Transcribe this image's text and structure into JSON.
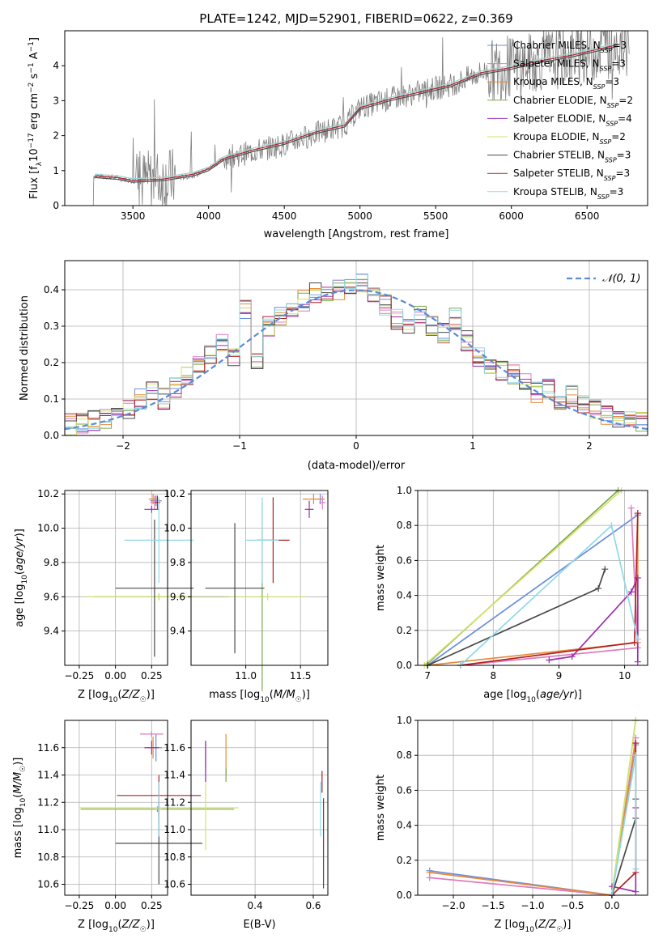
{
  "figure": {
    "title": "PLATE=1242, MJD=52901, FIBERID=0622, z=0.369"
  },
  "colors": {
    "Chabrier MILES": "#6b8ddc",
    "Salpeter MILES": "#e07bbf",
    "Kroupa MILES": "#e68a3a",
    "Chabrier ELODIE": "#7aa94a",
    "Salpeter ELODIE": "#9b2fae",
    "Kroupa ELODIE": "#d6e26b",
    "Chabrier STELIB": "#4a4a4a",
    "Salpeter STELIB": "#b22222",
    "Kroupa STELIB": "#8fd8e8",
    "data": "#808080"
  },
  "legend_main": [
    {
      "id": "Chabrier MILES",
      "base": "Chabrier MILES, N",
      "sub": "SSP",
      "tail": "=3"
    },
    {
      "id": "Salpeter MILES",
      "base": "Salpeter MILES, N",
      "sub": "SSP",
      "tail": "=3"
    },
    {
      "id": "Kroupa MILES",
      "base": "Kroupa MILES, N",
      "sub": "SSP",
      "tail": "=3"
    },
    {
      "id": "Chabrier ELODIE",
      "base": "Chabrier ELODIE, N",
      "sub": "SSP",
      "tail": "=2"
    },
    {
      "id": "Salpeter ELODIE",
      "base": "Salpeter ELODIE, N",
      "sub": "SSP",
      "tail": "=4"
    },
    {
      "id": "Kroupa ELODIE",
      "base": "Kroupa ELODIE, N",
      "sub": "SSP",
      "tail": "=2"
    },
    {
      "id": "Chabrier STELIB",
      "base": "Chabrier STELIB, N",
      "sub": "SSP",
      "tail": "=3"
    },
    {
      "id": "Salpeter STELIB",
      "base": "Salpeter STELIB, N",
      "sub": "SSP",
      "tail": "=3"
    },
    {
      "id": "Kroupa STELIB",
      "base": "Kroupa STELIB, N",
      "sub": "SSP",
      "tail": "=3"
    }
  ],
  "chart_data": [
    {
      "id": "spectrum",
      "type": "line",
      "xlabel": "wavelength [Angstrom, rest frame]",
      "ylabel": "Flux [f_λ 10^-17 erg cm^-2 s^-1 A^-1]",
      "xlim": [
        3050,
        6900
      ],
      "ylim": [
        0,
        5
      ],
      "xticks": [
        3500,
        4000,
        4500,
        5000,
        5500,
        6000,
        6500
      ],
      "yticks": [
        0,
        1,
        2,
        3,
        4
      ],
      "data_series": {
        "name": "data",
        "x": [
          3250,
          3400,
          3500,
          3700,
          3900,
          4000,
          4100,
          4300,
          4500,
          4700,
          4900,
          5000,
          5200,
          5400,
          5600,
          5800,
          6000,
          6200,
          6400,
          6700
        ],
        "y": [
          0.85,
          0.8,
          0.7,
          0.75,
          0.85,
          1.05,
          1.35,
          1.55,
          1.75,
          2.05,
          2.3,
          2.8,
          3.05,
          3.25,
          3.45,
          3.8,
          3.95,
          4.15,
          4.3,
          4.55
        ]
      },
      "model_x": [
        3250,
        3400,
        3500,
        3700,
        3900,
        4000,
        4100,
        4300,
        4500,
        4700,
        4900,
        5000,
        5200,
        5400,
        5600,
        5800,
        6000,
        6200,
        6400,
        6700
      ],
      "model_y": [
        0.85,
        0.8,
        0.72,
        0.76,
        0.9,
        1.05,
        1.35,
        1.6,
        1.8,
        2.1,
        2.3,
        2.8,
        3.05,
        3.25,
        3.45,
        3.8,
        3.95,
        4.15,
        4.3,
        4.6
      ],
      "noise_region": [
        [
          3520,
          3780
        ],
        [
          5850,
          6800
        ]
      ]
    },
    {
      "id": "residuals",
      "type": "area",
      "xlabel": "(data-model)/error",
      "ylabel": "Normed distribution",
      "xlim": [
        -2.5,
        2.5
      ],
      "ylim": [
        0,
        0.48
      ],
      "xticks": [
        -2,
        -1,
        0,
        1,
        2
      ],
      "yticks": [
        0.0,
        0.1,
        0.2,
        0.3,
        0.4
      ],
      "bins": [
        -2.5,
        -2.4,
        -2.3,
        -2.2,
        -2.1,
        -2.0,
        -1.9,
        -1.8,
        -1.7,
        -1.6,
        -1.5,
        -1.4,
        -1.3,
        -1.2,
        -1.1,
        -1.0,
        -0.9,
        -0.8,
        -0.7,
        -0.6,
        -0.5,
        -0.4,
        -0.3,
        -0.2,
        -0.1,
        0.0,
        0.1,
        0.2,
        0.3,
        0.4,
        0.5,
        0.6,
        0.7,
        0.8,
        0.9,
        1.0,
        1.1,
        1.2,
        1.3,
        1.4,
        1.5,
        1.6,
        1.7,
        1.8,
        1.9,
        2.0,
        2.1,
        2.2,
        2.3,
        2.4
      ],
      "hist_base": [
        0.03,
        0.035,
        0.04,
        0.045,
        0.05,
        0.07,
        0.1,
        0.12,
        0.1,
        0.13,
        0.16,
        0.19,
        0.22,
        0.25,
        0.22,
        0.35,
        0.2,
        0.3,
        0.33,
        0.35,
        0.37,
        0.39,
        0.38,
        0.4,
        0.41,
        0.42,
        0.38,
        0.36,
        0.32,
        0.3,
        0.33,
        0.3,
        0.28,
        0.32,
        0.26,
        0.22,
        0.2,
        0.18,
        0.17,
        0.15,
        0.12,
        0.13,
        0.1,
        0.11,
        0.09,
        0.07,
        0.06,
        0.05,
        0.04,
        0.04
      ],
      "gaussian": {
        "name": "𝒩(0, 1)",
        "mu": 0,
        "sigma": 1,
        "scale": 1
      }
    },
    {
      "id": "age_vs_Z",
      "type": "scatter",
      "xlabel": "Z [log10(Z/Z☉)]",
      "ylabel": "age [log10(age/yr)]",
      "xlim": [
        -0.35,
        0.36
      ],
      "ylim": [
        9.2,
        10.22
      ],
      "xticks": [
        -0.25,
        0.0,
        0.25
      ],
      "yticks": [
        9.4,
        9.6,
        9.8,
        10.0,
        10.2
      ],
      "points": [
        {
          "s": "Chabrier MILES",
          "x": 0.28,
          "y": 10.16,
          "xerr": 0.04,
          "yerr": 0.03
        },
        {
          "s": "Salpeter MILES",
          "x": 0.27,
          "y": 10.15,
          "xerr": 0.03,
          "yerr": 0.04
        },
        {
          "s": "Kroupa MILES",
          "x": 0.26,
          "y": 10.17,
          "xerr": 0.03,
          "yerr": 0.03
        },
        {
          "s": "Chabrier ELODIE",
          "x": 0.3,
          "y": 9.6,
          "xerr": 0.45,
          "yerr": 0.02
        },
        {
          "s": "Salpeter ELODIE",
          "x": 0.25,
          "y": 10.11,
          "xerr": 0.05,
          "yerr": 0.02
        },
        {
          "s": "Kroupa ELODIE",
          "x": 0.3,
          "y": 9.6,
          "xerr": 0.5,
          "yerr": 0.02
        },
        {
          "s": "Chabrier STELIB",
          "x": 0.27,
          "y": 9.65,
          "xerr": 0.27,
          "yerr": 0.4
        },
        {
          "s": "Salpeter STELIB",
          "x": 0.29,
          "y": 10.15,
          "xerr": 0.02,
          "yerr": 0.04
        },
        {
          "s": "Kroupa STELIB",
          "x": 0.3,
          "y": 9.93,
          "xerr": 0.24,
          "yerr": 0.25
        }
      ]
    },
    {
      "id": "age_vs_mass",
      "type": "scatter",
      "xlabel": "mass [log10(M/M☉)]",
      "ylabel": "",
      "xlim": [
        10.5,
        11.75
      ],
      "ylim": [
        9.2,
        10.22
      ],
      "xticks": [
        11.0,
        11.5
      ],
      "yticks": [
        9.4,
        9.6,
        9.8,
        10.0,
        10.2
      ],
      "points": [
        {
          "s": "Chabrier MILES",
          "x": 11.68,
          "y": 10.17,
          "xerr": 0.03,
          "yerr": 0.03
        },
        {
          "s": "Salpeter MILES",
          "x": 11.7,
          "y": 10.15,
          "xerr": 0.03,
          "yerr": 0.04
        },
        {
          "s": "Kroupa MILES",
          "x": 11.62,
          "y": 10.17,
          "xerr": 0.1,
          "yerr": 0.03
        },
        {
          "s": "Chabrier ELODIE",
          "x": 11.15,
          "y": 9.6,
          "xerr": 0.02,
          "yerr": 0.55
        },
        {
          "s": "Salpeter ELODIE",
          "x": 11.58,
          "y": 10.11,
          "xerr": 0.04,
          "yerr": 0.05
        },
        {
          "s": "Kroupa ELODIE",
          "x": 11.2,
          "y": 9.6,
          "xerr": 0.35,
          "yerr": 0.02
        },
        {
          "s": "Chabrier STELIB",
          "x": 10.9,
          "y": 9.65,
          "xerr": 0.27,
          "yerr": 0.38
        },
        {
          "s": "Salpeter STELIB",
          "x": 11.25,
          "y": 9.93,
          "xerr": 0.15,
          "yerr": 0.25
        },
        {
          "s": "Kroupa STELIB",
          "x": 11.15,
          "y": 9.93,
          "xerr": 0.15,
          "yerr": 0.25
        }
      ]
    },
    {
      "id": "massweight_vs_age",
      "type": "line",
      "xlabel": "age [log10(age/yr)]",
      "ylabel": "mass weight",
      "xlim": [
        6.85,
        10.35
      ],
      "ylim": [
        0,
        1
      ],
      "xticks": [
        7,
        8,
        9,
        10
      ],
      "yticks": [
        0.0,
        0.2,
        0.4,
        0.6,
        0.8,
        1.0
      ],
      "lines": [
        {
          "s": "Chabrier MILES",
          "x": [
            7.0,
            10.2
          ],
          "y": [
            0.0,
            0.86
          ]
        },
        {
          "s": "Salpeter MILES",
          "x": [
            7.5,
            10.2,
            10.1
          ],
          "y": [
            0.0,
            0.1,
            0.9
          ]
        },
        {
          "s": "Kroupa MILES",
          "x": [
            7.0,
            10.2,
            10.2
          ],
          "y": [
            0.0,
            0.13,
            0.87
          ]
        },
        {
          "s": "Chabrier ELODIE",
          "x": [
            7.0,
            9.9
          ],
          "y": [
            0.01,
            1.0
          ]
        },
        {
          "s": "Salpeter ELODIE",
          "x": [
            8.85,
            9.2,
            10.1,
            10.2,
            10.2
          ],
          "y": [
            0.03,
            0.05,
            0.42,
            0.5,
            0.02
          ]
        },
        {
          "s": "Kroupa ELODIE",
          "x": [
            6.95,
            9.95
          ],
          "y": [
            0.0,
            1.0
          ]
        },
        {
          "s": "Chabrier STELIB",
          "x": [
            7.0,
            9.6,
            9.7
          ],
          "y": [
            0.0,
            0.44,
            0.55
          ]
        },
        {
          "s": "Salpeter STELIB",
          "x": [
            7.5,
            10.15,
            10.2
          ],
          "y": [
            0.0,
            0.13,
            0.87
          ]
        },
        {
          "s": "Kroupa STELIB",
          "x": [
            7.5,
            9.8,
            10.2
          ],
          "y": [
            0.0,
            0.8,
            0.15
          ]
        }
      ]
    },
    {
      "id": "mass_vs_Z",
      "type": "scatter",
      "xlabel": "Z [log10(Z/Z☉)]",
      "ylabel": "mass [log10(M/M☉)]",
      "xlim": [
        -0.35,
        0.36
      ],
      "ylim": [
        10.52,
        11.8
      ],
      "xticks": [
        -0.25,
        0.0,
        0.25
      ],
      "yticks": [
        10.6,
        10.8,
        11.0,
        11.2,
        11.4,
        11.6
      ],
      "points": [
        {
          "s": "Chabrier MILES",
          "x": 0.28,
          "y": 11.6,
          "xerr": 0.04,
          "yerr": 0.1
        },
        {
          "s": "Salpeter MILES",
          "x": 0.25,
          "y": 11.7,
          "xerr": 0.08,
          "yerr": 0.02
        },
        {
          "s": "Kroupa MILES",
          "x": 0.26,
          "y": 11.6,
          "xerr": 0.04,
          "yerr": 0.08
        },
        {
          "s": "Chabrier ELODIE",
          "x": 0.29,
          "y": 11.15,
          "xerr": 0.53,
          "yerr": 0.02
        },
        {
          "s": "Salpeter ELODIE",
          "x": 0.25,
          "y": 11.6,
          "xerr": 0.05,
          "yerr": 0.05
        },
        {
          "s": "Kroupa ELODIE",
          "x": 0.3,
          "y": 11.16,
          "xerr": 0.55,
          "yerr": 0.02
        },
        {
          "s": "Chabrier STELIB",
          "x": 0.3,
          "y": 10.9,
          "xerr": 0.3,
          "yerr": 0.3
        },
        {
          "s": "Salpeter STELIB",
          "x": 0.3,
          "y": 11.25,
          "xerr": 0.29,
          "yerr": 0.15
        },
        {
          "s": "Kroupa STELIB",
          "x": 0.3,
          "y": 11.15,
          "xerr": 0.02,
          "yerr": 0.2
        }
      ]
    },
    {
      "id": "mass_vs_ebv",
      "type": "scatter",
      "xlabel": "E(B-V)",
      "ylabel": "",
      "xlim": [
        0.18,
        0.65
      ],
      "ylim": [
        10.52,
        11.8
      ],
      "xticks": [
        0.4,
        0.6
      ],
      "yticks": [
        10.6,
        10.8,
        11.0,
        11.2,
        11.4,
        11.6
      ],
      "points": [
        {
          "s": "Chabrier MILES",
          "x": 0.23,
          "y": 11.5,
          "xerr": 0.0,
          "yerr": 0.15
        },
        {
          "s": "Salpeter MILES",
          "x": 0.23,
          "y": 11.55,
          "xerr": 0.0,
          "yerr": 0.1
        },
        {
          "s": "Kroupa MILES",
          "x": 0.3,
          "y": 11.55,
          "xerr": 0.0,
          "yerr": 0.15
        },
        {
          "s": "Chabrier ELODIE",
          "x": 0.3,
          "y": 11.4,
          "xerr": 0.0,
          "yerr": 0.05
        },
        {
          "s": "Salpeter ELODIE",
          "x": 0.23,
          "y": 11.5,
          "xerr": 0.0,
          "yerr": 0.15
        },
        {
          "s": "Kroupa ELODIE",
          "x": 0.23,
          "y": 11.1,
          "xerr": 0.0,
          "yerr": 0.25
        },
        {
          "s": "Chabrier STELIB",
          "x": 0.635,
          "y": 10.9,
          "xerr": 0.0,
          "yerr": 0.33
        },
        {
          "s": "Salpeter STELIB",
          "x": 0.63,
          "y": 11.35,
          "xerr": 0.0,
          "yerr": 0.08
        },
        {
          "s": "Kroupa STELIB",
          "x": 0.625,
          "y": 11.15,
          "xerr": 0.0,
          "yerr": 0.2
        }
      ]
    },
    {
      "id": "massweight_vs_Z",
      "type": "line",
      "xlabel": "Z [log10(Z/Z☉)]",
      "ylabel": "mass weight",
      "xlim": [
        -2.45,
        0.45
      ],
      "ylim": [
        0,
        1
      ],
      "xticks": [
        -2.0,
        -1.5,
        -1.0,
        -0.5,
        0.0
      ],
      "yticks": [
        0.0,
        0.2,
        0.4,
        0.6,
        0.8,
        1.0
      ],
      "lines": [
        {
          "s": "Chabrier MILES",
          "x": [
            -2.3,
            0.0,
            0.3
          ],
          "y": [
            0.14,
            0.0,
            0.86
          ]
        },
        {
          "s": "Salpeter MILES",
          "x": [
            -2.3,
            0.0,
            0.3
          ],
          "y": [
            0.1,
            0.0,
            0.9
          ]
        },
        {
          "s": "Kroupa MILES",
          "x": [
            -2.3,
            0.0,
            0.3
          ],
          "y": [
            0.13,
            0.0,
            0.87
          ]
        },
        {
          "s": "Chabrier ELODIE",
          "x": [
            0.0,
            0.3
          ],
          "y": [
            0.0,
            1.0
          ]
        },
        {
          "s": "Salpeter ELODIE",
          "x": [
            0.0,
            0.3,
            0.3
          ],
          "y": [
            0.05,
            0.02,
            0.5
          ]
        },
        {
          "s": "Kroupa ELODIE",
          "x": [
            0.0,
            0.3
          ],
          "y": [
            0.0,
            1.0
          ]
        },
        {
          "s": "Chabrier STELIB",
          "x": [
            0.0,
            0.3,
            0.3
          ],
          "y": [
            0.0,
            0.44,
            0.55
          ]
        },
        {
          "s": "Salpeter STELIB",
          "x": [
            0.0,
            0.3,
            0.3
          ],
          "y": [
            0.0,
            0.13,
            0.87
          ]
        },
        {
          "s": "Kroupa STELIB",
          "x": [
            0.0,
            0.3,
            0.3
          ],
          "y": [
            0.0,
            0.8,
            0.15
          ]
        }
      ]
    }
  ]
}
